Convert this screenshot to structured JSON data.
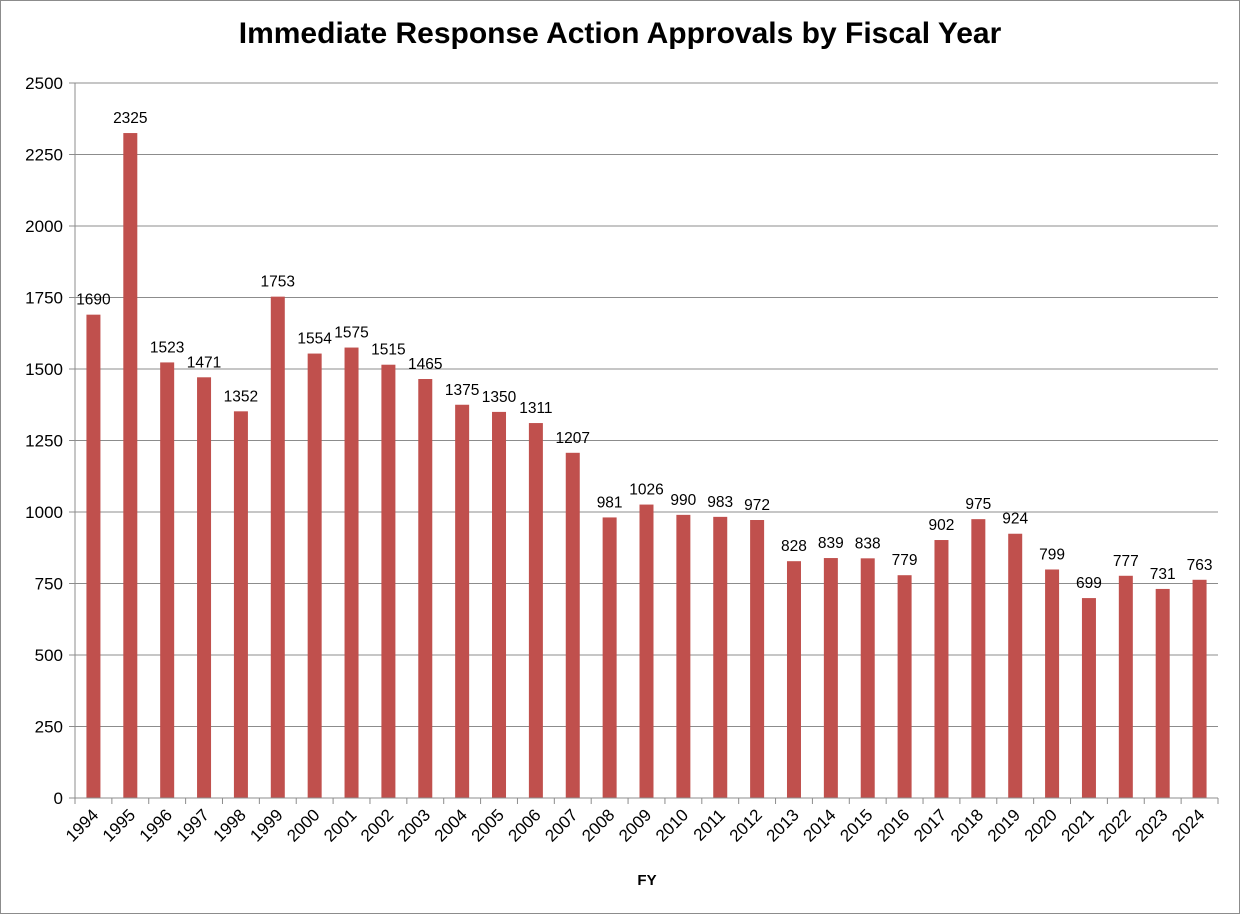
{
  "chart_data": {
    "type": "bar",
    "title": "Immediate Response Action Approvals by Fiscal Year",
    "xlabel": "FY",
    "ylabel": "",
    "ylim": [
      0,
      2500
    ],
    "yticks": [
      0,
      250,
      500,
      750,
      1000,
      1250,
      1500,
      1750,
      2000,
      2250,
      2500
    ],
    "grid": true,
    "legend": "none",
    "bar_color": "#c0504d",
    "categories": [
      "1994",
      "1995",
      "1996",
      "1997",
      "1998",
      "1999",
      "2000",
      "2001",
      "2002",
      "2003",
      "2004",
      "2005",
      "2006",
      "2007",
      "2008",
      "2009",
      "2010",
      "2011",
      "2012",
      "2013",
      "2014",
      "2015",
      "2016",
      "2017",
      "2018",
      "2019",
      "2020",
      "2021",
      "2022",
      "2023",
      "2024"
    ],
    "values": [
      1690,
      2325,
      1523,
      1471,
      1352,
      1753,
      1554,
      1575,
      1515,
      1465,
      1375,
      1350,
      1311,
      1207,
      981,
      1026,
      990,
      983,
      972,
      828,
      839,
      838,
      779,
      902,
      975,
      924,
      799,
      699,
      777,
      731,
      763
    ]
  }
}
